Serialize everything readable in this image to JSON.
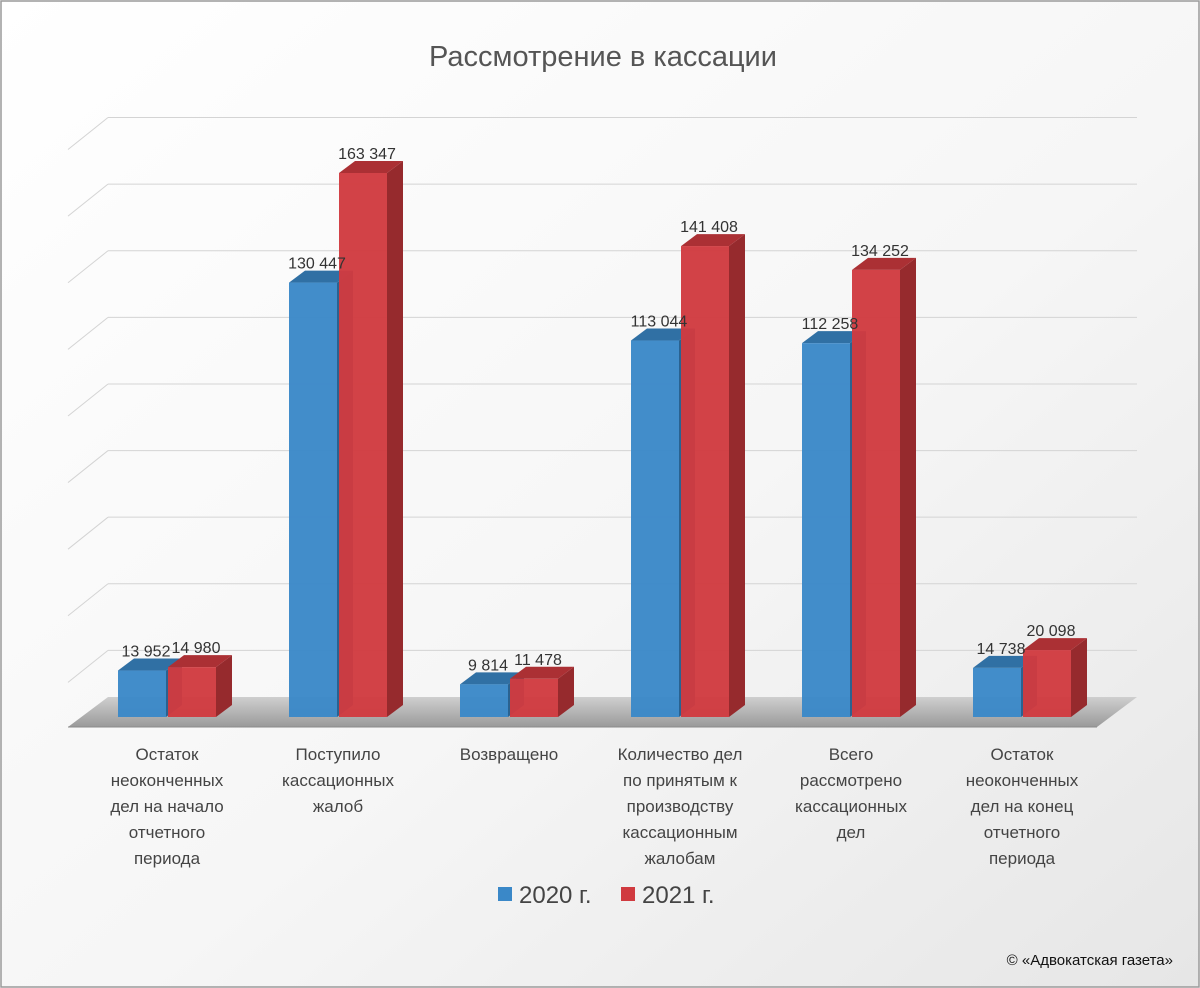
{
  "chart_data": {
    "type": "bar",
    "title": "Рассмотрение в кассации",
    "xlabel": "",
    "ylabel": "",
    "categories": [
      [
        "Остаток",
        "неоконченных",
        "дел на начало",
        "отчетного",
        "периода"
      ],
      [
        "Поступило",
        "кассационных",
        "жалоб"
      ],
      [
        "Возвращено"
      ],
      [
        "Количество дел",
        "по принятым к",
        "производству",
        "кассационным",
        "жалобам"
      ],
      [
        "Всего",
        "рассмотрено",
        "кассационных",
        "дел"
      ],
      [
        "Остаток",
        "неоконченных",
        "дел на конец",
        "отчетного",
        "периода"
      ]
    ],
    "series": [
      {
        "name": "2020 г.",
        "color": "#3a88c8",
        "values": [
          13952,
          130447,
          9814,
          113044,
          112258,
          14738
        ],
        "labels": [
          "13 952",
          "130 447",
          "9 814",
          "113 044",
          "112 258",
          "14 738"
        ]
      },
      {
        "name": "2021 г.",
        "color": "#d03a3f",
        "values": [
          14980,
          163347,
          11478,
          141408,
          134252,
          20098
        ],
        "labels": [
          "14 980",
          "163 347",
          "11 478",
          "141 408",
          "134 252",
          "20 098"
        ]
      }
    ],
    "ylim": [
      0,
      180000
    ],
    "grid": true,
    "legend_position": "bottom",
    "style": "3d-column"
  },
  "copyright": "© «Адвокатская газета»"
}
